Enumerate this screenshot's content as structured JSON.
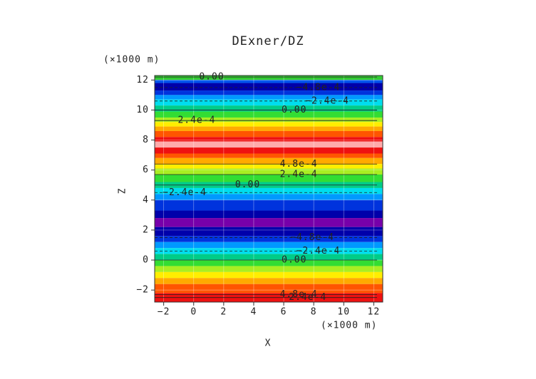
{
  "chart_data": {
    "type": "contourf",
    "title": "DExner/DZ",
    "xlabel": "X",
    "ylabel": "Z",
    "xunit": "(×1000 m)",
    "yunit": "(×1000 m)",
    "xlim": [
      -2.6,
      12.6
    ],
    "ylim": [
      -2.8,
      12.3
    ],
    "xticks": [
      {
        "value": -2,
        "label": "−2"
      },
      0,
      2,
      4,
      6,
      8,
      10,
      12
    ],
    "yticks": [
      {
        "value": -2,
        "label": "−2"
      },
      0,
      2,
      4,
      6,
      8,
      10,
      12
    ],
    "grid": true,
    "bands": [
      {
        "from": 12.0,
        "to": 12.3,
        "color": "#33cc33"
      },
      {
        "from": 11.8,
        "to": 12.0,
        "color": "#0055ee"
      },
      {
        "from": 11.3,
        "to": 11.8,
        "color": "#0000aa"
      },
      {
        "from": 11.0,
        "to": 11.3,
        "color": "#0033dd"
      },
      {
        "from": 10.7,
        "to": 11.0,
        "color": "#0099ff"
      },
      {
        "from": 10.3,
        "to": 10.7,
        "color": "#00ddee"
      },
      {
        "from": 9.9,
        "to": 10.3,
        "color": "#00cc88"
      },
      {
        "from": 9.5,
        "to": 9.9,
        "color": "#33dd33"
      },
      {
        "from": 9.2,
        "to": 9.5,
        "color": "#aaee22"
      },
      {
        "from": 8.9,
        "to": 9.2,
        "color": "#ffee00"
      },
      {
        "from": 8.6,
        "to": 8.9,
        "color": "#ffaa00"
      },
      {
        "from": 8.2,
        "to": 8.6,
        "color": "#ff5500"
      },
      {
        "from": 7.9,
        "to": 8.2,
        "color": "#ee1111"
      },
      {
        "from": 7.5,
        "to": 7.9,
        "color": "#ffaaaa"
      },
      {
        "from": 7.1,
        "to": 7.5,
        "color": "#ee1111"
      },
      {
        "from": 6.8,
        "to": 7.1,
        "color": "#ff5500"
      },
      {
        "from": 6.4,
        "to": 6.8,
        "color": "#ffaa00"
      },
      {
        "from": 6.1,
        "to": 6.4,
        "color": "#ffee00"
      },
      {
        "from": 5.7,
        "to": 6.1,
        "color": "#aaee22"
      },
      {
        "from": 5.2,
        "to": 5.7,
        "color": "#33dd33"
      },
      {
        "from": 4.8,
        "to": 5.2,
        "color": "#00cc88"
      },
      {
        "from": 4.4,
        "to": 4.8,
        "color": "#00ddee"
      },
      {
        "from": 4.0,
        "to": 4.4,
        "color": "#0099ff"
      },
      {
        "from": 3.3,
        "to": 4.0,
        "color": "#0033dd"
      },
      {
        "from": 2.8,
        "to": 3.3,
        "color": "#0000aa"
      },
      {
        "from": 2.2,
        "to": 2.8,
        "color": "#7700aa"
      },
      {
        "from": 1.6,
        "to": 2.2,
        "color": "#0000aa"
      },
      {
        "from": 1.2,
        "to": 1.6,
        "color": "#0033dd"
      },
      {
        "from": 0.8,
        "to": 1.2,
        "color": "#0099ff"
      },
      {
        "from": 0.4,
        "to": 0.8,
        "color": "#00ddee"
      },
      {
        "from": 0.0,
        "to": 0.4,
        "color": "#00cc88"
      },
      {
        "from": -0.4,
        "to": 0.0,
        "color": "#33dd33"
      },
      {
        "from": -0.8,
        "to": -0.4,
        "color": "#aaee22"
      },
      {
        "from": -1.2,
        "to": -0.8,
        "color": "#ffee00"
      },
      {
        "from": -1.6,
        "to": -1.2,
        "color": "#ffaa00"
      },
      {
        "from": -2.2,
        "to": -1.6,
        "color": "#ff5500"
      },
      {
        "from": -2.8,
        "to": -2.2,
        "color": "#ee1111"
      }
    ],
    "contour_labels": [
      {
        "text": "0.00",
        "x": 1.2,
        "y": 12.2
      },
      {
        "text": "−4.8e-4",
        "x": 8.3,
        "y": 11.5
      },
      {
        "text": "−2.4e-4",
        "x": 8.9,
        "y": 10.6
      },
      {
        "text": "0.00",
        "x": 6.7,
        "y": 10.0
      },
      {
        "text": "2.4e-4",
        "x": 0.2,
        "y": 9.3
      },
      {
        "text": "4.8e-4",
        "x": 7.0,
        "y": 6.4
      },
      {
        "text": "2.4e-4",
        "x": 7.0,
        "y": 5.7
      },
      {
        "text": "0.00",
        "x": 3.6,
        "y": 5.0
      },
      {
        "text": "−2.4e-4",
        "x": -0.6,
        "y": 4.5
      },
      {
        "text": "−4.8e-4",
        "x": 7.9,
        "y": 1.5
      },
      {
        "text": "−2.4e-4",
        "x": 8.3,
        "y": 0.6
      },
      {
        "text": "0.00",
        "x": 6.7,
        "y": 0.0
      },
      {
        "text": "4.8e-4",
        "x": 7.0,
        "y": -2.3
      },
      {
        "text": "2.4e-4",
        "x": 7.6,
        "y": -2.5
      }
    ]
  }
}
